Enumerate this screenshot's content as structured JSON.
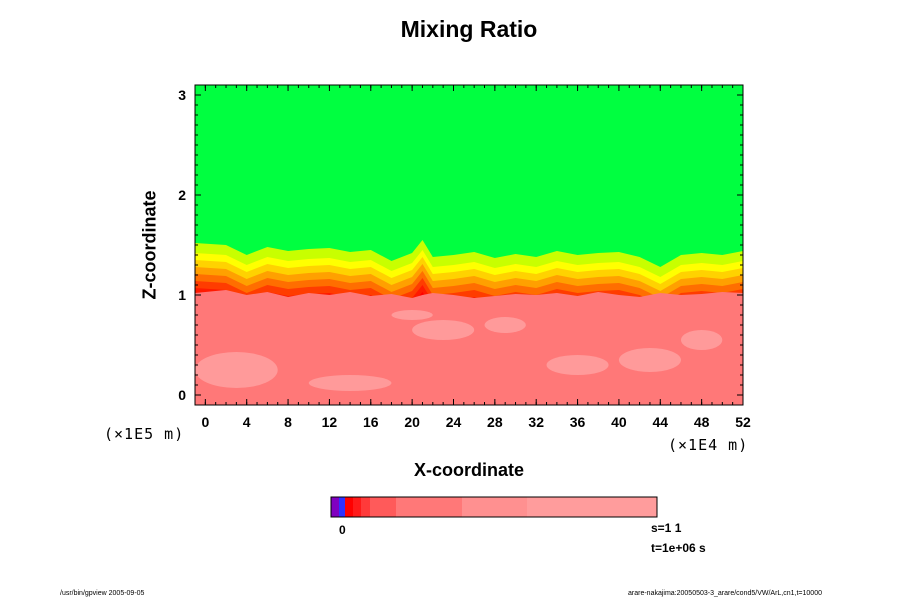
{
  "chart_data": {
    "type": "heatmap",
    "title": "Mixing Ratio",
    "xlabel": "X-coordinate",
    "ylabel": "Z-coordinate",
    "x_scale_label": "(×1E4 m)",
    "y_scale_label": "(×1E5 m)",
    "xlim": [
      -1,
      52
    ],
    "ylim": [
      -0.1,
      3.1
    ],
    "x_ticks": [
      0,
      4,
      8,
      12,
      16,
      20,
      24,
      28,
      32,
      36,
      40,
      44,
      48,
      52
    ],
    "y_ticks": [
      0,
      1,
      2,
      3
    ],
    "colorbar": {
      "tick_label": "0",
      "colors": [
        "#8000c0",
        "#3030ff",
        "#ff0000",
        "#ff1a1a",
        "#ff3a3a",
        "#ff5a5a",
        "#ff7878",
        "#ff9090"
      ]
    },
    "fields": {
      "upper_value_color": "#00ff40",
      "upper_region_bottom_z": 1.5,
      "transition_top_z": 1.5,
      "transition_bottom_z": 1.0,
      "lower_value_color": "#ff7878",
      "lower_region_top_z": 1.0,
      "interface_layers": [
        {
          "color": "#ffff00",
          "offset": 0.0
        },
        {
          "color": "#ffd200",
          "offset": 0.07
        },
        {
          "color": "#ffa000",
          "offset": 0.14
        },
        {
          "color": "#ff6e00",
          "offset": 0.21
        },
        {
          "color": "#ff3c00",
          "offset": 0.28
        },
        {
          "color": "#ff1a00",
          "offset": 0.35
        },
        {
          "color": "#ff0000",
          "offset": 0.42
        }
      ],
      "interface_profile": {
        "x": [
          -1,
          2,
          4,
          6,
          8,
          10,
          12,
          14,
          16,
          18,
          20,
          21,
          22,
          24,
          26,
          28,
          30,
          32,
          34,
          36,
          38,
          40,
          42,
          44,
          46,
          48,
          50,
          52
        ],
        "z": [
          1.42,
          1.4,
          1.3,
          1.38,
          1.34,
          1.36,
          1.37,
          1.33,
          1.35,
          1.24,
          1.32,
          1.45,
          1.28,
          1.3,
          1.33,
          1.27,
          1.31,
          1.28,
          1.34,
          1.3,
          1.32,
          1.33,
          1.28,
          1.18,
          1.3,
          1.32,
          1.3,
          1.34
        ]
      }
    },
    "info": {
      "s": "s=1 1",
      "t": "t=1e+06 s"
    },
    "footer": {
      "left": "/usr/bin/gpview 2005-09-05",
      "right": "arare-nakajima:20050503-3_arare/cond5/VW/ArL,cn1,t=10000"
    }
  }
}
